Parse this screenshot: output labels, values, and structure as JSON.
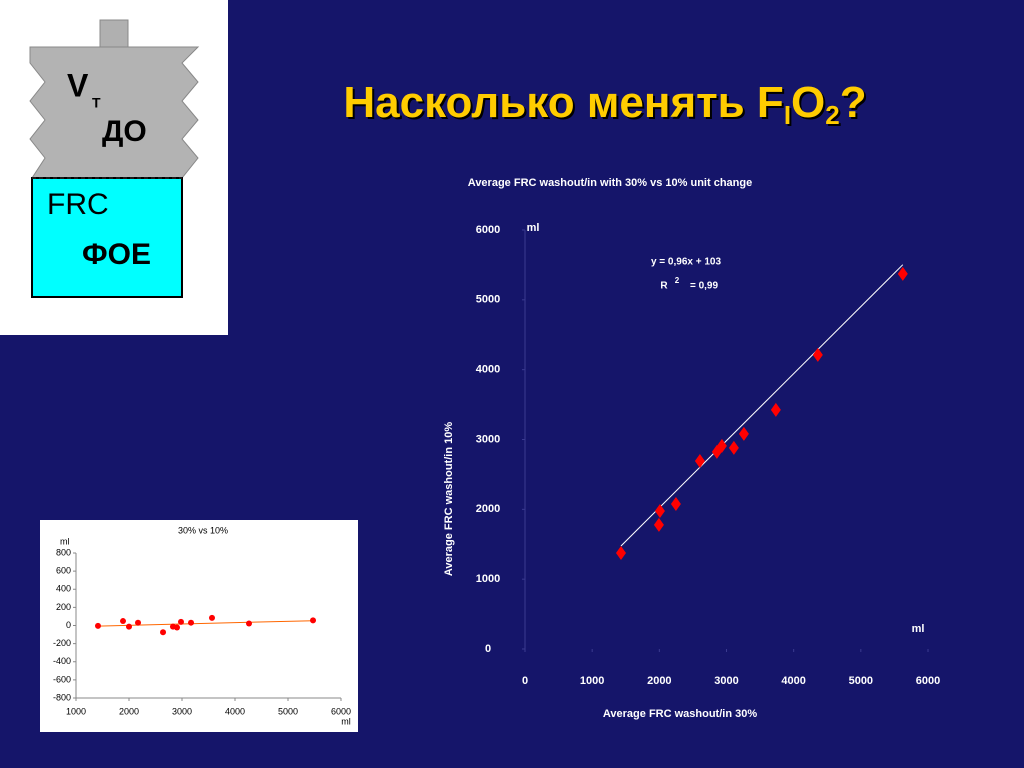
{
  "slide": {
    "title": {
      "main": "Насколько менять F",
      "sub1": "I",
      "mid": "O",
      "sub2": "2",
      "end": "?"
    }
  },
  "diagram": {
    "vt": "V",
    "vt_sub": "T",
    "do": "ДО",
    "frc": "FRC",
    "foe": "ФОЕ"
  },
  "chart_data": [
    {
      "type": "scatter",
      "title": "Average FRC washout/in with 30% vs 10% unit change",
      "x_label": "Average FRC washout/in 30%",
      "y_label": "Average FRC washout/in 10%",
      "x_unit": "ml",
      "y_unit": "ml",
      "annotations": [
        "y = 0,96x + 103",
        "R",
        "2",
        "= 0,99"
      ],
      "trendline": {
        "slope": 0.96,
        "intercept": 103
      },
      "trendline_color": "#ffffff",
      "marker": "diamond",
      "color": "#ff0000",
      "x": [
        1429,
        1994,
        2009,
        2247,
        2604,
        2857,
        2932,
        3110,
        3259,
        3735,
        4360,
        5625
      ],
      "values": [
        1375,
        1777,
        1977,
        2077,
        2693,
        2822,
        2908,
        2880,
        3080,
        3424,
        4212,
        5372
      ],
      "xlim": [
        0,
        6000
      ],
      "ylim": [
        0,
        6000
      ],
      "xticks": [
        0,
        1000,
        2000,
        3000,
        4000,
        5000,
        6000
      ],
      "yticks": [
        0,
        1000,
        2000,
        3000,
        4000,
        5000,
        6000
      ]
    },
    {
      "type": "scatter",
      "title": "30% vs 10%",
      "x_unit": "ml",
      "y_unit": "ml",
      "trendline": true,
      "trendline_color": "#ff6600",
      "marker": "circle",
      "color": "#ff0000",
      "x": [
        1415,
        1887,
        2000,
        2170,
        2642,
        2830,
        2906,
        2981,
        3170,
        3566,
        4264,
        5472
      ],
      "values": [
        -4,
        49,
        -13,
        31,
        -75,
        -13,
        -22,
        40,
        31,
        84,
        22,
        57
      ],
      "xlim": [
        1000,
        6000
      ],
      "ylim": [
        -800,
        800
      ],
      "xticks": [
        1000,
        2000,
        3000,
        4000,
        5000,
        6000
      ],
      "yticks": [
        800,
        600,
        400,
        200,
        0,
        -200,
        -400,
        -600,
        -800
      ]
    }
  ]
}
